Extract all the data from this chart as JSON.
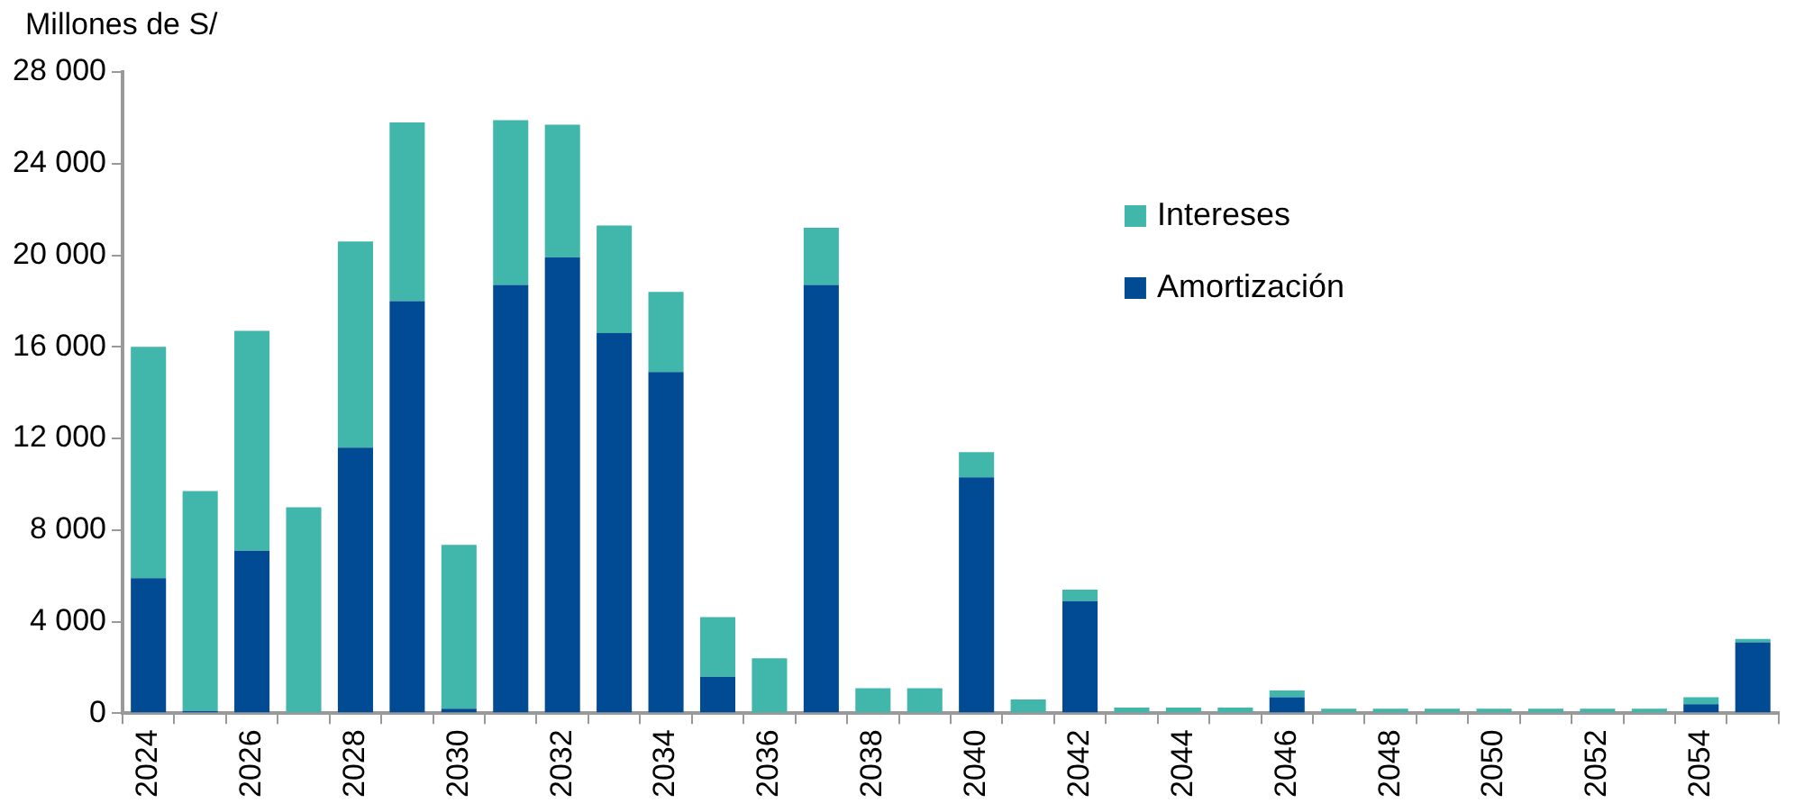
{
  "chart_data": {
    "type": "bar",
    "stacked": true,
    "ylabel": "Millones de S/",
    "categories": [
      "2024",
      null,
      "2026",
      null,
      "2028",
      null,
      "2030",
      null,
      "2032",
      null,
      "2034",
      null,
      "2036",
      null,
      "2038",
      null,
      "2040",
      null,
      "2042",
      null,
      "2044",
      null,
      "2046",
      null,
      "2048",
      null,
      "2050",
      null,
      "2052",
      null,
      "2054",
      null
    ],
    "series": [
      {
        "name": "Amortización",
        "color": "#004b93",
        "values": [
          5900,
          100,
          7100,
          0,
          11600,
          18000,
          200,
          18700,
          19900,
          16600,
          14900,
          1600,
          0,
          18700,
          0,
          0,
          10300,
          0,
          4900,
          0,
          0,
          0,
          700,
          0,
          0,
          0,
          0,
          0,
          0,
          0,
          400,
          3100
        ]
      },
      {
        "name": "Intereses",
        "color": "#41b6aa",
        "values": [
          10100,
          9600,
          9600,
          9000,
          9000,
          7800,
          7150,
          7200,
          5800,
          4700,
          3500,
          2600,
          2400,
          2500,
          1100,
          1100,
          1100,
          600,
          500,
          250,
          250,
          250,
          300,
          200,
          200,
          200,
          200,
          200,
          200,
          200,
          300,
          150
        ]
      }
    ],
    "ylim": [
      0,
      28000
    ],
    "yticks": [
      {
        "value": 0,
        "label": "0"
      },
      {
        "value": 4000,
        "label": "4 000"
      },
      {
        "value": 8000,
        "label": "8 000"
      },
      {
        "value": 12000,
        "label": "12 000"
      },
      {
        "value": 16000,
        "label": "16 000"
      },
      {
        "value": 20000,
        "label": "20 000"
      },
      {
        "value": 24000,
        "label": "24 000"
      },
      {
        "value": 28000,
        "label": "28 000"
      }
    ],
    "grid": false,
    "legend": "top right"
  }
}
